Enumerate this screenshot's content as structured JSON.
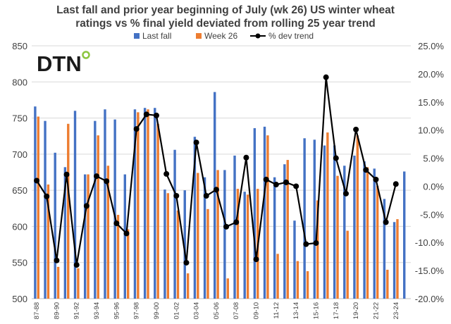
{
  "logo": {
    "text": "DTN"
  },
  "colors": {
    "last_fall": "#4472C4",
    "week26": "#ED7D31",
    "trend": "#000000",
    "logo_dot": "#8CC63F"
  },
  "chart_data": {
    "type": "bar+line",
    "title_lines": [
      "Last fall and prior year beginning of July (wk 26) US winter wheat",
      "ratings vs % final yield deviated from rolling 25 year trend"
    ],
    "categories": [
      "87-88",
      "88-89",
      "89-90",
      "90-91",
      "91-92",
      "92-93",
      "93-94",
      "94-95",
      "95-96",
      "96-97",
      "97-98",
      "98-99",
      "99-00",
      "00-01",
      "01-02",
      "02-03",
      "03-04",
      "04-05",
      "05-06",
      "06-07",
      "07-08",
      "08-09",
      "09-10",
      "10-11",
      "11-12",
      "12-13",
      "13-14",
      "14-15",
      "15-16",
      "16-17",
      "17-18",
      "18-19",
      "19-20",
      "20-21",
      "21-22",
      "22-23",
      "23-24",
      "24-25"
    ],
    "x_tick_labels": [
      "87-88",
      "",
      "89-90",
      "",
      "91-92",
      "",
      "93-94",
      "",
      "95-96",
      "",
      "97-98",
      "",
      "99-00",
      "",
      "01-02",
      "",
      "03-04",
      "",
      "05-06",
      "",
      "07-08",
      "",
      "09-10",
      "",
      "11-12",
      "",
      "13-14",
      "",
      "15-16",
      "",
      "17-18",
      "",
      "19-20",
      "",
      "21-22",
      "",
      "23-24",
      ""
    ],
    "series": [
      {
        "name": "Last fall",
        "axis": "left",
        "values": [
          766,
          746,
          702,
          682,
          760,
          672,
          746,
          762,
          748,
          672,
          762,
          764,
          764,
          651,
          706,
          650,
          724,
          668,
          786,
          678,
          698,
          648,
          736,
          738,
          668,
          686,
          608,
          722,
          720,
          712,
          712,
          684,
          698,
          690,
          680,
          638,
          606,
          676
        ]
      },
      {
        "name": "Week 26",
        "axis": "left",
        "values": [
          752,
          658,
          544,
          742,
          542,
          672,
          726,
          684,
          616,
          596,
          758,
          762,
          742,
          646,
          622,
          535,
          674,
          624,
          678,
          528,
          652,
          644,
          652,
          726,
          562,
          692,
          552,
          538,
          636,
          730,
          670,
          594,
          726,
          682,
          656,
          540,
          610,
          null
        ]
      },
      {
        "name": "% dev trend",
        "axis": "right",
        "type": "line",
        "values": [
          1.0,
          -1.8,
          -13.2,
          2.1,
          -14.0,
          -3.5,
          1.8,
          0.9,
          -6.6,
          -8.4,
          10.2,
          12.8,
          12.6,
          2.2,
          -1.7,
          -13.6,
          7.8,
          -1.7,
          -0.6,
          -7.2,
          -6.4,
          5.1,
          -13.0,
          1.2,
          0.3,
          0.7,
          0.0,
          -10.3,
          -10.1,
          19.4,
          5.0,
          -1.3,
          10.1,
          2.9,
          1.2,
          -6.4,
          0.4,
          null
        ]
      }
    ],
    "left_axis": {
      "min": 500,
      "max": 850,
      "ticks": [
        "500",
        "550",
        "600",
        "650",
        "700",
        "750",
        "800",
        "850"
      ],
      "tick_values": [
        500,
        550,
        600,
        650,
        700,
        750,
        800,
        850
      ]
    },
    "right_axis": {
      "min": -20,
      "max": 25,
      "ticks": [
        "-20.0%",
        "-15.0%",
        "-10.0%",
        "-5.0%",
        "0.0%",
        "5.0%",
        "10.0%",
        "15.0%",
        "20.0%",
        "25.0%"
      ],
      "tick_values": [
        -20,
        -15,
        -10,
        -5,
        0,
        5,
        10,
        15,
        20,
        25
      ]
    },
    "legend": {
      "placement": "top-center",
      "entries": [
        "Last fall",
        "Week 26",
        "% dev trend"
      ]
    }
  }
}
